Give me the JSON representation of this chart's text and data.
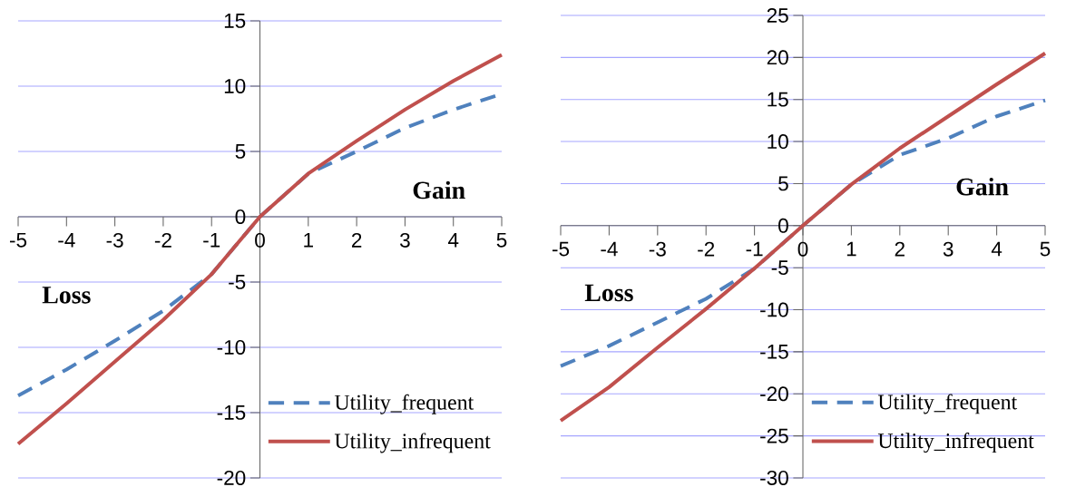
{
  "chart_data": [
    {
      "type": "line",
      "x": [
        -5,
        -4,
        -3,
        -2,
        -1,
        0,
        1,
        2,
        3,
        4,
        5
      ],
      "xlim": [
        -5,
        5
      ],
      "xticks": [
        -5,
        -4,
        -3,
        -2,
        -1,
        0,
        1,
        2,
        3,
        4,
        5
      ],
      "ylim": [
        -20,
        15
      ],
      "yticks": [
        -20,
        -15,
        -10,
        -5,
        0,
        5,
        10,
        15
      ],
      "grid": "y",
      "legend": "bottom right",
      "marker": "none",
      "series": [
        {
          "name": "Utility_frequent",
          "color": "#4f81bd",
          "line_style": "dashed",
          "values": [
            -13.7,
            -11.7,
            -9.5,
            -7.2,
            -4.4,
            0,
            3.3,
            5.0,
            6.8,
            8.2,
            9.4
          ]
        },
        {
          "name": "Utility_infrequent",
          "color": "#c0504d",
          "line_style": "solid",
          "values": [
            -17.4,
            -14.3,
            -11.1,
            -7.9,
            -4.4,
            0,
            3.3,
            5.8,
            8.2,
            10.4,
            12.4
          ]
        }
      ],
      "annotations": [
        "Gain",
        "Loss"
      ]
    },
    {
      "type": "line",
      "x": [
        -5,
        -4,
        -3,
        -2,
        -1,
        0,
        1,
        2,
        3,
        4,
        5
      ],
      "xlim": [
        -5,
        5
      ],
      "xticks": [
        -5,
        -4,
        -3,
        -2,
        -1,
        0,
        1,
        2,
        3,
        4,
        5
      ],
      "ylim": [
        -30,
        25
      ],
      "yticks": [
        -30,
        -25,
        -20,
        -15,
        -10,
        -5,
        0,
        5,
        10,
        15,
        20,
        25
      ],
      "grid": "y",
      "legend": "bottom right",
      "marker": "none",
      "series": [
        {
          "name": "Utility_frequent",
          "color": "#4f81bd",
          "line_style": "dashed",
          "values": [
            -16.7,
            -14.3,
            -11.5,
            -8.7,
            -5.1,
            0,
            4.9,
            8.4,
            10.4,
            13.0,
            14.9
          ]
        },
        {
          "name": "Utility_infrequent",
          "color": "#c0504d",
          "line_style": "solid",
          "values": [
            -23.2,
            -19.2,
            -14.5,
            -9.9,
            -5.1,
            0,
            4.9,
            9.2,
            13.0,
            16.8,
            20.5
          ]
        }
      ],
      "annotations": [
        "Gain",
        "Loss"
      ]
    }
  ]
}
